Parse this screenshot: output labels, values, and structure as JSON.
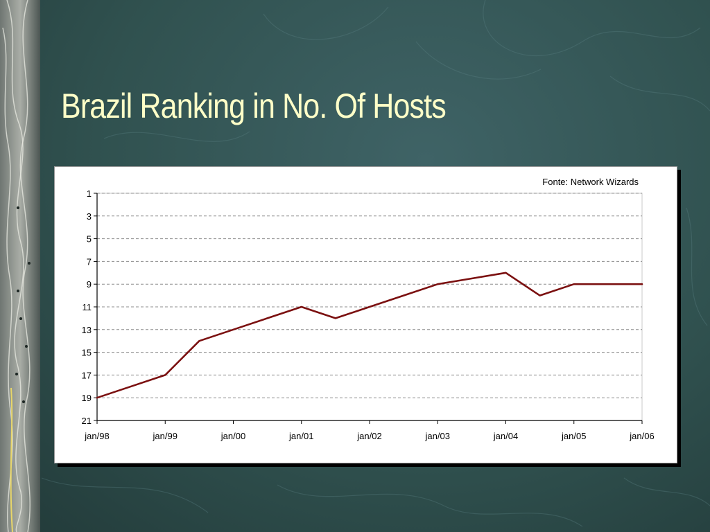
{
  "slide": {
    "title": "Brazil Ranking in No. Of Hosts"
  },
  "colors": {
    "background": "#30514f",
    "title": "#ffffc8",
    "line": "#7b1010",
    "grid": "#8c8c8c"
  },
  "chart_data": {
    "type": "line",
    "source_note": "Fonte: Network Wizards",
    "x_labels": [
      "jan/98",
      "jan/99",
      "jan/00",
      "jan/01",
      "jan/02",
      "jan/03",
      "jan/04",
      "jan/05",
      "jan/06"
    ],
    "y_ticks": [
      1,
      3,
      5,
      7,
      9,
      11,
      13,
      15,
      17,
      19,
      21
    ],
    "ylim": [
      1,
      21
    ],
    "y_inverted": true,
    "grid": "horizontal dashed",
    "series": [
      {
        "x": [
          "jan/98",
          "jul/98",
          "jan/99",
          "jul/99",
          "jan/00",
          "jul/00",
          "jan/01",
          "jul/01",
          "jan/02",
          "jul/02",
          "jan/03",
          "jul/03",
          "jan/04",
          "jul/04",
          "jan/05",
          "jul/05",
          "jan/06"
        ],
        "values": [
          19,
          18,
          17,
          14,
          13,
          12,
          11,
          12,
          11,
          10,
          9,
          8.5,
          8,
          10,
          9,
          9,
          9
        ]
      }
    ]
  }
}
